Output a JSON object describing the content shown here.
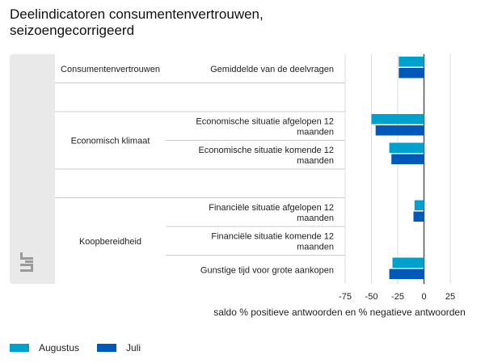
{
  "title": "Deelindicatoren consumentenvertrouwen, seizoengecorrigeerd",
  "xlabel": "saldo % positieve antwoorden en % negatieve antwoorden",
  "colors": {
    "augustus": "#00a1cd",
    "juli": "#0058b8",
    "panel": "#e9e9e9",
    "grid": "#cccccc",
    "zero": "#555555"
  },
  "icons": {
    "logo": "cbs-logo-icon"
  },
  "chart_data": {
    "type": "bar",
    "orientation": "horizontal",
    "xlim": [
      -75,
      25
    ],
    "xticks": [
      -75,
      -50,
      -25,
      0,
      25
    ],
    "groups": [
      {
        "label": "Consumentenvertrouwen",
        "rows": [
          0
        ]
      },
      {
        "label": "Economisch klimaat",
        "rows": [
          2,
          3
        ]
      },
      {
        "label": "Koopbereidheid",
        "rows": [
          5,
          6,
          7
        ]
      }
    ],
    "categories": [
      "Gemiddelde van de deelvragen",
      "",
      "Economische situatie afgelopen 12 maanden",
      "Economische situatie komende 12 maanden",
      "",
      "Financiële situatie afgelopen 12 maanden",
      "Financiële situatie komende 12 maanden",
      "Gunstige tijd voor grote aankopen"
    ],
    "series": [
      {
        "name": "Augustus",
        "values": [
          -24,
          null,
          -50,
          -33,
          null,
          -9,
          0,
          -30
        ]
      },
      {
        "name": "Juli",
        "values": [
          -24,
          null,
          -46,
          -31,
          null,
          -10,
          0,
          -33
        ]
      }
    ],
    "legend_position": "bottom-left",
    "grid": true
  }
}
